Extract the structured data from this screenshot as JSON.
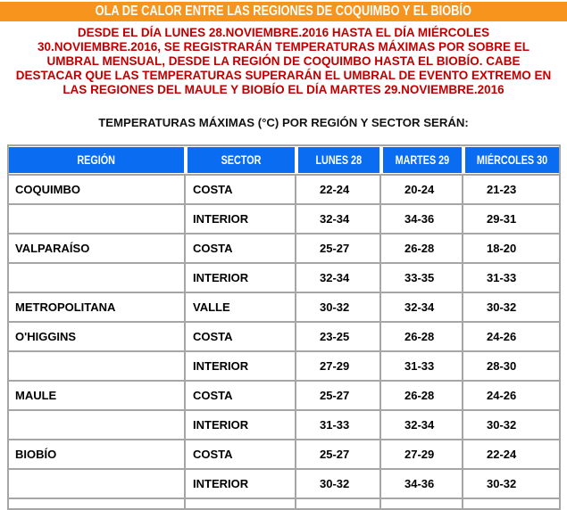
{
  "title_bar": {
    "title": "OLA DE CALOR ENTRE LAS REGIONES DE COQUIMBO Y EL BIOBÍO"
  },
  "alert": {
    "lines": [
      "DESDE EL DÍA LUNES 28.NOVIEMBRE.2016 HASTA EL DÍA MIÉRCOLES",
      "30.NOVIEMBRE.2016, SE REGISTRARÁN TEMPERATURAS MÁXIMAS POR SOBRE EL",
      "UMBRAL MENSUAL, DESDE LA REGIÓN DE COQUIMBO HASTA EL BIOBÍO. CABE",
      "DESTACAR QUE LAS TEMPERATURAS SUPERARÁN EL UMBRAL DE EVENTO EXTREMO EN",
      "LAS REGIONES DEL MAULE Y BIOBÍO EL DÍA MARTES 29.NOVIEMBRE.2016"
    ]
  },
  "subtitle": "TEMPERATURAS MÁXIMAS (°C) POR REGIÓN Y SECTOR SERÁN:",
  "colors": {
    "header_bar_orange": "#F7941E",
    "table_header_blue": "#0A6CF0",
    "alert_text_red": "#C00000",
    "table_border_gray": "#A6A6A6"
  },
  "table": {
    "headers": [
      "REGIÓN",
      "SECTOR",
      "LUNES 28",
      "MARTES 29",
      "MIÉRCOLES 30"
    ],
    "rows": [
      {
        "region": "COQUIMBO",
        "sector": "COSTA",
        "lunes28": "22-24",
        "martes29": "20-24",
        "miercoles30": "21-23"
      },
      {
        "region": "",
        "sector": "INTERIOR",
        "lunes28": "32-34",
        "martes29": "34-36",
        "miercoles30": "29-31"
      },
      {
        "region": "VALPARAÍSO",
        "sector": "COSTA",
        "lunes28": "25-27",
        "martes29": "26-28",
        "miercoles30": "18-20"
      },
      {
        "region": "",
        "sector": "INTERIOR",
        "lunes28": "32-34",
        "martes29": "33-35",
        "miercoles30": "31-33"
      },
      {
        "region": "METROPOLITANA",
        "sector": "VALLE",
        "lunes28": "30-32",
        "martes29": "32-34",
        "miercoles30": "30-32"
      },
      {
        "region": "O'HIGGINS",
        "sector": "COSTA",
        "lunes28": "23-25",
        "martes29": "26-28",
        "miercoles30": "24-26"
      },
      {
        "region": "",
        "sector": "INTERIOR",
        "lunes28": "27-29",
        "martes29": "31-33",
        "miercoles30": "28-30"
      },
      {
        "region": "MAULE",
        "sector": "COSTA",
        "lunes28": "25-27",
        "martes29": "26-28",
        "miercoles30": "24-26"
      },
      {
        "region": "",
        "sector": "INTERIOR",
        "lunes28": "31-33",
        "martes29": "32-34",
        "miercoles30": "30-32"
      },
      {
        "region": "BIOBÍO",
        "sector": "COSTA",
        "lunes28": "25-27",
        "martes29": "27-29",
        "miercoles30": "22-24"
      },
      {
        "region": "",
        "sector": "INTERIOR",
        "lunes28": "30-32",
        "martes29": "34-36",
        "miercoles30": "30-32"
      }
    ]
  }
}
